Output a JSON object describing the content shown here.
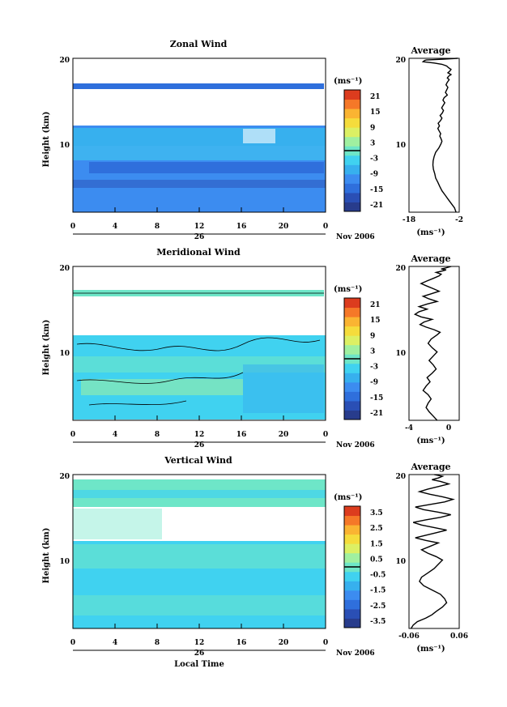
{
  "palette": {
    "wind": [
      "#283c8c",
      "#2a4fb5",
      "#2f6fdc",
      "#3c8cf0",
      "#37b0ee",
      "#40d2f0",
      "#6ee6c8",
      "#a0f0a0",
      "#dcf064",
      "#f5dc3c",
      "#fab432",
      "#f57828",
      "#dc3c1e"
    ],
    "vertical": [
      "#283c8c",
      "#2a4fb5",
      "#2f6fdc",
      "#3c8cf0",
      "#37b0ee",
      "#40d2f0",
      "#6ee6c8",
      "#a0f0a0",
      "#dcf064",
      "#f5dc3c",
      "#fab432",
      "#f57828",
      "#dc3c1e"
    ]
  },
  "chart_data": [
    {
      "type": "heatmap",
      "title": "Zonal Wind",
      "ylabel": "Height (km)",
      "xlabel": "",
      "xlim": [
        0,
        24
      ],
      "ylim": [
        2,
        20
      ],
      "x_ticks": [
        "0",
        "4",
        "8",
        "12",
        "16",
        "20",
        "0"
      ],
      "y_ticks": [
        "10",
        "20"
      ],
      "date_label": "26",
      "month_label": "Nov 2006",
      "colorbar": {
        "unit": "(ms⁻¹)",
        "ticks": [
          "21",
          "15",
          "9",
          "3",
          "-3",
          "-9",
          "-15",
          "-21"
        ],
        "range": [
          -24,
          24
        ]
      }
    },
    {
      "type": "line",
      "title": "Average",
      "xlabel": "(ms⁻¹)",
      "xlim": [
        -18,
        -2
      ],
      "ylim": [
        2,
        20
      ],
      "x_ticks": [
        "-18",
        "-2"
      ],
      "y_ticks": [
        "10",
        "20"
      ],
      "x": [
        -3,
        -3.5,
        -4.5,
        -5.5,
        -6.5,
        -7.5,
        -8.2,
        -8.8,
        -9.5,
        -9.8,
        -10.2,
        -10.4,
        -10.3,
        -10.0,
        -9.5,
        -8.5,
        -7.8,
        -7.5,
        -7.8,
        -8.2,
        -7.9,
        -8.4,
        -8.8,
        -8.3,
        -8.7,
        -8.0,
        -7.5,
        -8.1,
        -7.4,
        -7.0,
        -7.6,
        -7.1,
        -6.6,
        -7.2,
        -6.8,
        -5.8,
        -6.4,
        -6.0,
        -5.6,
        -6.2,
        -5.8,
        -5.2,
        -5.8,
        -5.4,
        -4.6,
        -5.6,
        -5.0,
        -4.6,
        -5.4,
        -6.0,
        -7.5,
        -10.0,
        -12.5,
        -13.5,
        -13.2,
        -13.0,
        -12.5,
        -7.0,
        -2.5
      ],
      "y": [
        2.0,
        2.5,
        3.0,
        3.5,
        4.0,
        4.5,
        5.0,
        5.5,
        6.0,
        6.5,
        7.0,
        7.5,
        8.0,
        8.5,
        9.0,
        9.5,
        10.0,
        10.3,
        10.6,
        10.9,
        11.2,
        11.5,
        11.8,
        12.1,
        12.4,
        12.7,
        13.0,
        13.3,
        13.6,
        13.9,
        14.2,
        14.5,
        14.8,
        15.1,
        15.4,
        15.7,
        16.0,
        16.3,
        16.6,
        16.9,
        17.2,
        17.5,
        17.7,
        17.9,
        18.1,
        18.3,
        18.5,
        18.7,
        18.9,
        19.1,
        19.3,
        19.45,
        19.55,
        19.6,
        19.7,
        19.75,
        19.8,
        19.9,
        20.0
      ]
    },
    {
      "type": "heatmap",
      "title": "Meridional Wind",
      "ylabel": "Height (km)",
      "xlabel": "",
      "xlim": [
        0,
        24
      ],
      "ylim": [
        2,
        20
      ],
      "x_ticks": [
        "0",
        "4",
        "8",
        "12",
        "16",
        "20",
        "0"
      ],
      "y_ticks": [
        "10",
        "20"
      ],
      "date_label": "26",
      "month_label": "Nov 2006",
      "colorbar": {
        "unit": "(ms⁻¹)",
        "ticks": [
          "21",
          "15",
          "9",
          "3",
          "-3",
          "-9",
          "-15",
          "-21"
        ],
        "range": [
          -24,
          24
        ]
      }
    },
    {
      "type": "line",
      "title": "Average",
      "xlabel": "(ms⁻¹)",
      "xlim": [
        -4,
        1
      ],
      "ylim": [
        2,
        20
      ],
      "x_ticks": [
        "-4",
        "0"
      ],
      "y_ticks": [
        "10",
        "20"
      ],
      "x": [
        -1.2,
        -1.6,
        -2.0,
        -2.3,
        -2.1,
        -1.8,
        -2.1,
        -2.6,
        -2.3,
        -1.9,
        -2.2,
        -1.7,
        -1.3,
        -1.6,
        -2.0,
        -1.6,
        -1.2,
        -1.7,
        -2.1,
        -1.8,
        -1.2,
        -0.9,
        -1.5,
        -2.3,
        -2.9,
        -2.5,
        -1.7,
        -2.8,
        -3.4,
        -3.0,
        -2.2,
        -3.0,
        -2.2,
        -1.2,
        -2.0,
        -2.6,
        -1.8,
        -1.0,
        -1.6,
        -2.2,
        -2.8,
        -2.2,
        -1.6,
        -1.0,
        -0.8,
        -1.3,
        -0.6,
        -0.3,
        -0.8,
        -0.4,
        0.2
      ],
      "y": [
        2.0,
        2.5,
        3.0,
        3.5,
        4.0,
        4.5,
        5.0,
        5.5,
        6.0,
        6.5,
        7.0,
        7.5,
        8.0,
        8.5,
        9.0,
        9.5,
        10.0,
        10.5,
        11.0,
        11.5,
        12.0,
        12.3,
        12.6,
        12.9,
        13.2,
        13.5,
        13.8,
        14.1,
        14.4,
        14.7,
        15.0,
        15.3,
        15.6,
        15.9,
        16.2,
        16.5,
        16.8,
        17.1,
        17.4,
        17.7,
        18.0,
        18.3,
        18.6,
        18.9,
        19.1,
        19.3,
        19.5,
        19.6,
        19.7,
        19.8,
        20.0
      ]
    },
    {
      "type": "heatmap",
      "title": "Vertical Wind",
      "ylabel": "Height (km)",
      "xlabel": "Local Time",
      "xlim": [
        0,
        24
      ],
      "ylim": [
        2,
        20
      ],
      "x_ticks": [
        "0",
        "4",
        "8",
        "12",
        "16",
        "20",
        "0"
      ],
      "y_ticks": [
        "10",
        "20"
      ],
      "date_label": "26",
      "month_label": "Nov 2006",
      "colorbar": {
        "unit": "(ms⁻¹)",
        "ticks": [
          "3.5",
          "2.5",
          "1.5",
          "0.5",
          "-0.5",
          "-1.5",
          "-2.5",
          "-3.5"
        ],
        "range": [
          -4,
          4
        ]
      }
    },
    {
      "type": "line",
      "title": "Average",
      "xlabel": "(ms⁻¹)",
      "xlim": [
        -0.06,
        0.06
      ],
      "ylim": [
        2,
        20
      ],
      "x_ticks": [
        "-0.06",
        "0.06"
      ],
      "y_ticks": [
        "10",
        "20"
      ],
      "x": [
        -0.055,
        -0.05,
        -0.04,
        -0.02,
        -0.005,
        0.005,
        0.02,
        0.03,
        0.025,
        0.015,
        -0.005,
        -0.025,
        -0.035,
        -0.03,
        -0.015,
        0.0,
        0.01,
        0.02,
        0.005,
        -0.015,
        -0.03,
        -0.01,
        0.01,
        -0.02,
        -0.045,
        -0.02,
        0.005,
        0.03,
        0.0,
        -0.03,
        -0.05,
        -0.02,
        0.015,
        0.04,
        0.01,
        -0.025,
        -0.045,
        -0.01,
        0.025,
        0.045,
        0.02,
        -0.01,
        -0.035,
        -0.015,
        0.01,
        0.035,
        0.015,
        -0.005,
        0.01,
        0.02,
        0.0
      ],
      "y": [
        2.0,
        2.4,
        2.8,
        3.2,
        3.6,
        4.0,
        4.5,
        5.0,
        5.5,
        6.0,
        6.5,
        7.0,
        7.5,
        8.0,
        8.5,
        9.0,
        9.5,
        10.0,
        10.4,
        10.8,
        11.2,
        11.6,
        12.0,
        12.3,
        12.6,
        12.9,
        13.2,
        13.5,
        13.8,
        14.1,
        14.4,
        14.7,
        15.0,
        15.3,
        15.6,
        15.9,
        16.2,
        16.5,
        16.8,
        17.1,
        17.4,
        17.7,
        18.0,
        18.3,
        18.6,
        18.9,
        19.2,
        19.4,
        19.6,
        19.8,
        20.0
      ]
    }
  ]
}
